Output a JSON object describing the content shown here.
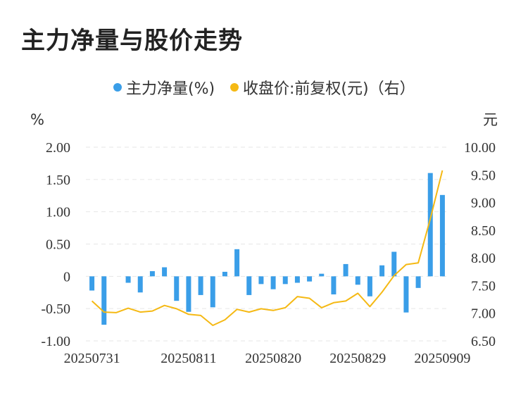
{
  "title": "主力净量与股价走势",
  "colors": {
    "bar": "#3a9ee8",
    "line": "#f5b914",
    "grid": "#e6e6e6"
  },
  "chart_data": {
    "type": "bar",
    "legend": [
      {
        "name": "主力净量(%)",
        "color": "#3a9ee8",
        "icon": "circle"
      },
      {
        "name": "收盘价:前复权(元)（右）",
        "color": "#f5b914",
        "icon": "circle"
      }
    ],
    "left_axis": {
      "unit": "%",
      "ylim": [
        -1.0,
        2.0
      ],
      "ticks": [
        {
          "v": 2.0,
          "label": "2.00"
        },
        {
          "v": 1.5,
          "label": "1.50"
        },
        {
          "v": 1.0,
          "label": "1.00"
        },
        {
          "v": 0.5,
          "label": "0.50"
        },
        {
          "v": 0,
          "label": "0"
        },
        {
          "v": -0.5,
          "label": "-0.50"
        },
        {
          "v": -1.0,
          "label": "-1.00"
        }
      ]
    },
    "right_axis": {
      "unit": "元",
      "ylim": [
        6.5,
        10.0
      ],
      "ticks": [
        {
          "v": 10.0,
          "label": "10.00"
        },
        {
          "v": 9.5,
          "label": "9.50"
        },
        {
          "v": 9.0,
          "label": "9.00"
        },
        {
          "v": 8.5,
          "label": "8.50"
        },
        {
          "v": 8.0,
          "label": "8.00"
        },
        {
          "v": 7.5,
          "label": "7.50"
        },
        {
          "v": 7.0,
          "label": "7.00"
        },
        {
          "v": 6.5,
          "label": "6.50"
        }
      ]
    },
    "x_tick_labels": [
      {
        "index": 0,
        "label": "20250731"
      },
      {
        "index": 8,
        "label": "20250811"
      },
      {
        "index": 15,
        "label": "20250820"
      },
      {
        "index": 22,
        "label": "20250829"
      },
      {
        "index": 29,
        "label": "20250909"
      }
    ],
    "grid": true,
    "series": [
      {
        "name": "主力净量(%)",
        "type": "bar",
        "axis": "left",
        "values": [
          -0.22,
          -0.75,
          0,
          -0.1,
          -0.25,
          0.08,
          0.14,
          -0.38,
          -0.55,
          -0.29,
          -0.48,
          0.07,
          0.42,
          -0.29,
          -0.12,
          -0.2,
          -0.12,
          -0.1,
          -0.08,
          0.04,
          -0.28,
          0.19,
          -0.13,
          -0.31,
          0.17,
          0.38,
          -0.56,
          -0.18,
          1.6,
          1.26
        ]
      },
      {
        "name": "收盘价:前复权(元)（右）",
        "type": "line",
        "axis": "right",
        "values": [
          7.22,
          7.02,
          7.01,
          7.09,
          7.02,
          7.04,
          7.14,
          7.08,
          6.98,
          6.96,
          6.78,
          6.88,
          7.07,
          7.02,
          7.08,
          7.05,
          7.1,
          7.3,
          7.27,
          7.1,
          7.19,
          7.22,
          7.36,
          7.12,
          7.38,
          7.68,
          7.88,
          7.91,
          8.71,
          9.58
        ]
      }
    ]
  }
}
